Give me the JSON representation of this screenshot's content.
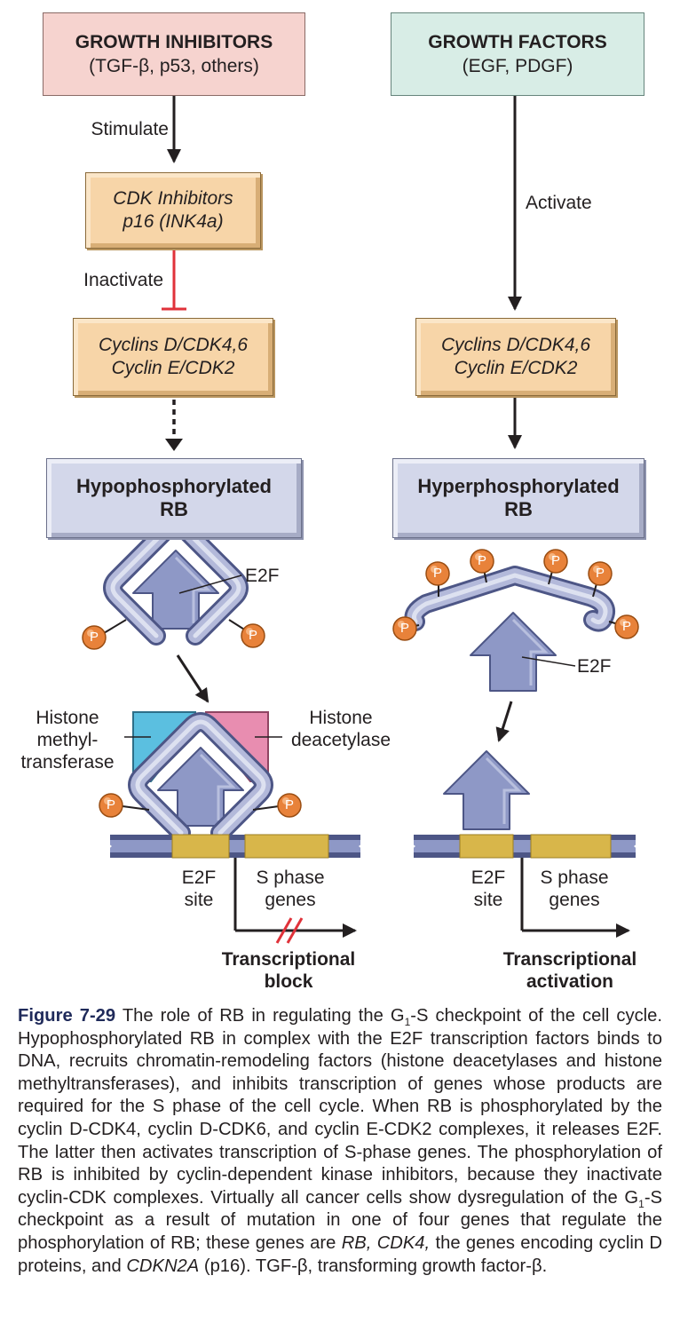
{
  "left": {
    "inhibitors": {
      "title": "GROWTH INHIBITORS",
      "subtitle": "(TGF-β, p53, others)"
    },
    "stimulate": "Stimulate",
    "cdk_inhibitors": {
      "line1": "CDK Inhibitors",
      "line2": "p16 (INK4a)"
    },
    "inactivate": "Inactivate",
    "cyclins": {
      "line1": "Cyclins D/CDK4,6",
      "line2": "Cyclin E/CDK2"
    },
    "rb": {
      "line1": "Hypophosphorylated",
      "line2": "RB"
    },
    "e2f": "E2F",
    "p": "P",
    "histone_mt": {
      "line1": "Histone",
      "line2": "methyl-",
      "line3": "transferase"
    },
    "histone_da": {
      "line1": "Histone",
      "line2": "deacetylase"
    },
    "e2f_site": {
      "line1": "E2F",
      "line2": "site"
    },
    "s_phase": {
      "line1": "S phase",
      "line2": "genes"
    },
    "outcome": {
      "line1": "Transcriptional",
      "line2": "block"
    }
  },
  "right": {
    "factors": {
      "title": "GROWTH FACTORS",
      "subtitle": "(EGF, PDGF)"
    },
    "activate": "Activate",
    "cyclins": {
      "line1": "Cyclins D/CDK4,6",
      "line2": "Cyclin E/CDK2"
    },
    "rb": {
      "line1": "Hyperphosphorylated",
      "line2": "RB"
    },
    "e2f": "E2F",
    "p": "P",
    "e2f_site": {
      "line1": "E2F",
      "line2": "site"
    },
    "s_phase": {
      "line1": "S phase",
      "line2": "genes"
    },
    "outcome": {
      "line1": "Transcriptional",
      "line2": "activation"
    }
  },
  "caption": {
    "figure_label": "Figure 7-29",
    "part1": " The role of RB in regulating the G",
    "sub1": "1",
    "part2": "-S checkpoint of the cell cycle. Hypophosphorylated RB in complex with the E2F transcription factors binds to DNA, recruits chromatin-remodeling factors (histone deacetylases and histone methyltransferases), and inhibits transcription of genes whose products are required for the S phase of the cell cycle. When RB is phosphorylated by the cyclin D-CDK4, cyclin D-CDK6, and cyclin E-CDK2 complexes, it releases E2F. The latter then activates transcription of S-phase genes. The phosphorylation of RB is inhibited by cyclin-dependent kinase inhibitors, because they inactivate cyclin-CDK complexes. Virtually all cancer cells show dysregulation of the G",
    "sub2": "1",
    "part3": "-S checkpoint as a result of mutation in one of four genes that regulate the phosphorylation of RB; these genes are ",
    "it1": "RB, CDK4,",
    "part4": " the genes encoding cyclin D proteins, and ",
    "it2": "CDKN2A",
    "part5": " (p16). TGF-β, transforming growth factor-β."
  },
  "colors": {
    "inhibitor_box": "#f6d3cf",
    "factor_box": "#d8ede6",
    "orange_box": "#f7d5a8",
    "blue_box": "#d3d7ea",
    "protein": "#8e98c6",
    "phosphate": "#e8823a",
    "methyltransferase": "#5bbfe0",
    "deacetylase": "#e88db0",
    "dna_gold": "#d8b64a",
    "inhibit_red": "#e0323a"
  }
}
